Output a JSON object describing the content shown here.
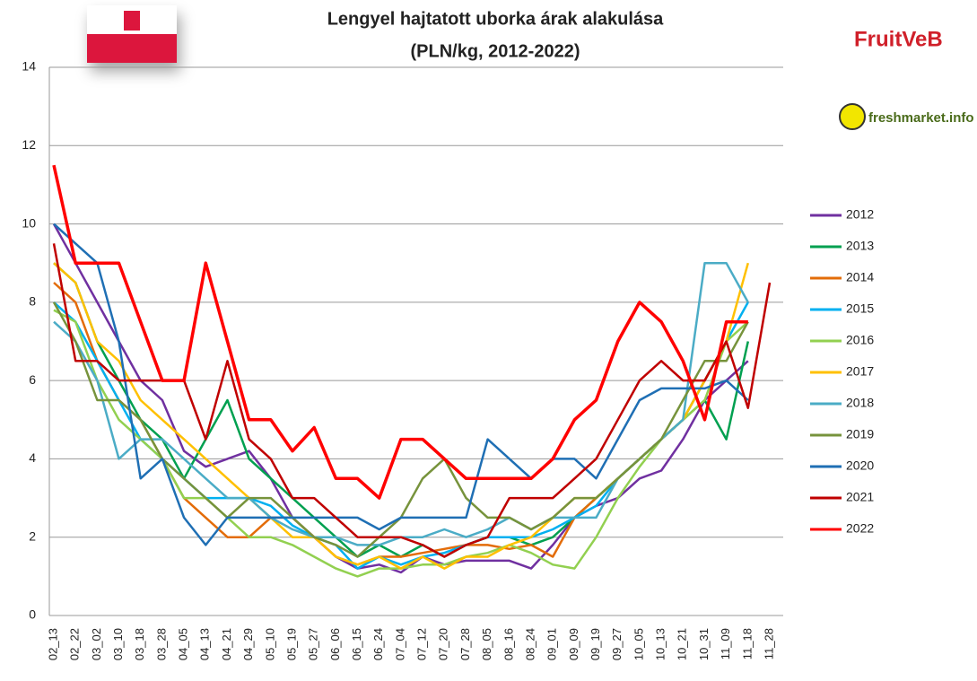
{
  "chart_data": {
    "type": "line",
    "title": "Lengyel hajtatott uborka árak alakulása",
    "subtitle": "(PLN/kg, 2012-2022)",
    "annotations": [
      "FruitVeB",
      "freshmarket.info"
    ],
    "categories": [
      "02_13",
      "02_22",
      "03_02",
      "03_10",
      "03_18",
      "03_28",
      "04_05",
      "04_13",
      "04_21",
      "04_29",
      "05_10",
      "05_19",
      "05_27",
      "06_06",
      "06_15",
      "06_24",
      "07_04",
      "07_12",
      "07_20",
      "07_28",
      "08_05",
      "08_16",
      "08_24",
      "09_01",
      "09_09",
      "09_19",
      "09_27",
      "10_05",
      "10_13",
      "10_21",
      "10_31",
      "11_09",
      "11_18",
      "11_28"
    ],
    "ylim": [
      0,
      14
    ],
    "yticks": [
      0,
      2,
      4,
      6,
      8,
      10,
      12,
      14
    ],
    "grid": true,
    "legend": "right",
    "series": [
      {
        "name": "2012",
        "color": "#7030a0",
        "values": [
          10,
          9,
          8,
          7,
          6,
          5.5,
          4.2,
          3.8,
          4,
          4.2,
          3.5,
          2.5,
          2,
          1.5,
          1.2,
          1.3,
          1.1,
          1.5,
          1.3,
          1.4,
          1.4,
          1.4,
          1.2,
          1.8,
          2.5,
          2.8,
          3,
          3.5,
          3.7,
          4.5,
          5.5,
          6,
          6.5,
          null
        ]
      },
      {
        "name": "2013",
        "color": "#00a050",
        "values": [
          9,
          8.5,
          7,
          6,
          5,
          4.5,
          3.5,
          4.5,
          5.5,
          4,
          3.5,
          3,
          2.5,
          2,
          1.5,
          1.8,
          1.5,
          1.8,
          1.5,
          1.8,
          2,
          2,
          1.8,
          2,
          2.5,
          3,
          3.5,
          4,
          4.5,
          5,
          5.5,
          4.5,
          7,
          null
        ]
      },
      {
        "name": "2014",
        "color": "#e36c09",
        "values": [
          8.5,
          8,
          6.5,
          5.5,
          5,
          4,
          3,
          2.5,
          2,
          2,
          2.5,
          2.5,
          2,
          1.5,
          1.3,
          1.5,
          1.5,
          1.6,
          1.7,
          1.8,
          1.8,
          1.7,
          1.8,
          1.5,
          2.5,
          3,
          3.5,
          4,
          4.5,
          5,
          6,
          7,
          null,
          null
        ]
      },
      {
        "name": "2015",
        "color": "#00b0f0",
        "values": [
          8,
          7.5,
          6.5,
          5.5,
          4.5,
          4,
          3.5,
          3,
          3,
          3,
          2.8,
          2.3,
          2,
          1.8,
          1.2,
          1.5,
          1.3,
          1.5,
          1.6,
          1.8,
          2,
          2,
          2,
          2.2,
          2.5,
          2.8,
          3.5,
          4,
          4.5,
          5,
          6,
          7,
          8,
          null
        ]
      },
      {
        "name": "2016",
        "color": "#92d050",
        "values": [
          7.8,
          7.5,
          6,
          5,
          4.5,
          4,
          3,
          3,
          2.5,
          2,
          2,
          1.8,
          1.5,
          1.2,
          1,
          1.2,
          1.2,
          1.3,
          1.3,
          1.5,
          1.6,
          1.8,
          1.6,
          1.3,
          1.2,
          2,
          3,
          3.8,
          4.5,
          5,
          5.5,
          7,
          7.5,
          null
        ]
      },
      {
        "name": "2017",
        "color": "#ffc000",
        "values": [
          9,
          8.5,
          7,
          6.5,
          5.5,
          5,
          4.5,
          4,
          3.5,
          3,
          2.5,
          2,
          2,
          1.5,
          1.3,
          1.5,
          1.2,
          1.5,
          1.2,
          1.5,
          1.5,
          1.8,
          2,
          2.5,
          3,
          3,
          3.5,
          4,
          4.5,
          5,
          6,
          7,
          9,
          null
        ]
      },
      {
        "name": "2018",
        "color": "#4bacc6",
        "values": [
          7.5,
          7,
          6,
          4,
          4.5,
          4.5,
          4,
          3.5,
          3,
          3,
          2.5,
          2.2,
          2,
          2,
          1.8,
          1.8,
          2,
          2,
          2.2,
          2,
          2.2,
          2.5,
          2.2,
          2.5,
          2.5,
          2.5,
          3.5,
          4,
          4.5,
          5,
          9,
          9,
          8,
          null
        ]
      },
      {
        "name": "2019",
        "color": "#77933c",
        "values": [
          8,
          7,
          5.5,
          5.5,
          5,
          4,
          3.5,
          3,
          2.5,
          3,
          3,
          2.5,
          2,
          1.8,
          1.5,
          2,
          2.5,
          3.5,
          4,
          3,
          2.5,
          2.5,
          2.2,
          2.5,
          3,
          3,
          3.5,
          4,
          4.5,
          5.5,
          6.5,
          6.5,
          7.5,
          null
        ]
      },
      {
        "name": "2020",
        "color": "#1f6fb4",
        "values": [
          10,
          9.5,
          9,
          7,
          3.5,
          4,
          2.5,
          1.8,
          2.5,
          2.5,
          2.5,
          2.5,
          2.5,
          2.5,
          2.5,
          2.2,
          2.5,
          2.5,
          2.5,
          2.5,
          4.5,
          4,
          3.5,
          4,
          4,
          3.5,
          4.5,
          5.5,
          5.8,
          5.8,
          5.8,
          6,
          5.5,
          null
        ]
      },
      {
        "name": "2021",
        "color": "#c00000",
        "values": [
          9.5,
          6.5,
          6.5,
          6,
          6,
          6,
          6,
          4.5,
          6.5,
          4.5,
          4,
          3,
          3,
          2.5,
          2,
          2,
          2,
          1.8,
          1.5,
          1.8,
          2,
          3,
          3,
          3,
          3.5,
          4,
          5,
          6,
          6.5,
          6,
          6,
          7,
          5.3,
          8.5
        ]
      },
      {
        "name": "2022",
        "color": "#ff0000",
        "values": [
          11.5,
          9,
          9,
          9,
          7.5,
          6,
          6,
          9,
          7,
          5,
          5,
          4.2,
          4.8,
          3.5,
          3.5,
          3,
          4.5,
          4.5,
          4,
          3.5,
          3.5,
          3.5,
          3.5,
          4,
          5,
          5.5,
          7,
          8,
          7.5,
          6.5,
          5,
          7.5,
          7.5,
          null
        ]
      }
    ]
  }
}
